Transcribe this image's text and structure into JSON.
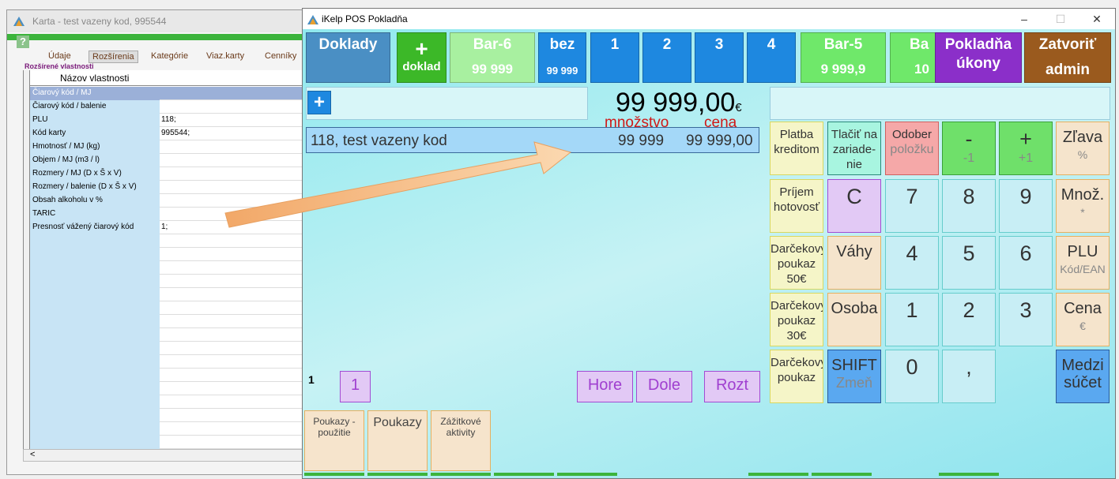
{
  "card_window": {
    "title": "Karta - test vazeny kod, 995544",
    "help": "?",
    "tabs": [
      "Údaje",
      "Rozšírenia",
      "Kategórie",
      "Viaz.karty",
      "Cenníky"
    ],
    "selected_tab": "Rozšírenia",
    "section": "Rozšírené vlastnosti",
    "column_header": "Názov vlastnosti",
    "rows": [
      {
        "name": "Čiarový kód / MJ",
        "value": ""
      },
      {
        "name": "Čiarový kód / balenie",
        "value": ""
      },
      {
        "name": "PLU",
        "value": "118;"
      },
      {
        "name": "Kód karty",
        "value": "995544;"
      },
      {
        "name": "Hmotnosť / MJ (kg)",
        "value": ""
      },
      {
        "name": "Objem / MJ (m3 / l)",
        "value": ""
      },
      {
        "name": "Rozmery / MJ (D x Š x V)",
        "value": ""
      },
      {
        "name": "Rozmery / balenie  (D x Š x V)",
        "value": ""
      },
      {
        "name": "Obsah alkoholu v %",
        "value": ""
      },
      {
        "name": "TARIC",
        "value": ""
      },
      {
        "name": "Presnosť vážený čiarový kód",
        "value": "1;"
      }
    ],
    "scroll_left": "<"
  },
  "pos": {
    "title": "iKelp POS Pokladňa",
    "minimize": "–",
    "maximize": "☐",
    "close": "✕",
    "top": {
      "doklady": "Doklady",
      "new_plus": "+",
      "new_label": "doklad",
      "bar6": "Bar-6",
      "bar6_val": "99 999",
      "bez": "bez",
      "bez_val": "99 999",
      "t1": "1",
      "t2": "2",
      "t3": "3",
      "t4": "4",
      "bar5": "Bar-5",
      "bar5_val": "9 999,9",
      "ba": "Ba",
      "ba_val": "10",
      "pokladna1": "Pokladňa",
      "pokladna2": "úkony",
      "zatvorit": "Zatvoriť",
      "admin": "admin"
    },
    "add": "+",
    "total": "99 999,00",
    "currency": "€",
    "qty_label": "množstvo",
    "price_label": "cena",
    "item": {
      "name": "118, test vazeny kod",
      "qty": "99 999",
      "price": "99 999,00"
    },
    "keys": [
      [
        {
          "a": "Platba",
          "b": "kreditom"
        },
        {
          "a": "Tlačiť na",
          "b": "zariade-",
          "c": "nie"
        },
        {
          "a": "Odober",
          "b": "položku"
        },
        {
          "a": "-",
          "b": "-1"
        },
        {
          "a": "+",
          "b": "+1"
        },
        {
          "a": "Zľava",
          "b": "%"
        }
      ],
      [
        {
          "a": "Príjem",
          "b": "hotovosť"
        },
        {
          "a": "C"
        },
        {
          "a": "7"
        },
        {
          "a": "8"
        },
        {
          "a": "9"
        },
        {
          "a": "Množ.",
          "b": "*"
        }
      ],
      [
        {
          "a": "Darčekový",
          "b": "poukaz",
          "c": "50€"
        },
        {
          "a": "Váhy"
        },
        {
          "a": "4"
        },
        {
          "a": "5"
        },
        {
          "a": "6"
        },
        {
          "a": "PLU",
          "b": "Kód/EAN"
        }
      ],
      [
        {
          "a": "Darčekový",
          "b": "poukaz",
          "c": "30€"
        },
        {
          "a": "Osoba"
        },
        {
          "a": "1"
        },
        {
          "a": "2"
        },
        {
          "a": "3"
        },
        {
          "a": "Cena",
          "b": "€"
        }
      ],
      [
        {
          "a": "Darčekový",
          "b": "poukaz"
        },
        {
          "a": "SHIFT",
          "b": "Zmeň"
        },
        {
          "a": "0"
        },
        {
          "a": ","
        },
        {
          "a": ""
        },
        {
          "a": "Medzi",
          "b": "súčet"
        }
      ]
    ],
    "page_num": "1",
    "page_btn": "1",
    "hore": "Hore",
    "dole": "Dole",
    "rozt": "Rozt",
    "bottom": [
      {
        "a": "Poukazy -",
        "b": "použitie"
      },
      {
        "a": "Poukazy"
      },
      {
        "a": "Zážitkové",
        "b": "aktivity"
      }
    ]
  },
  "colors": {
    "doklady": "#4a8fc4",
    "green": "#3cb828",
    "bar6": "#a8f0a0",
    "blue": "#1e88e0",
    "bar5": "#6fe86a",
    "purple": "#8b2fc9",
    "brown": "#9a5a1e",
    "arrow": "#f5b478"
  }
}
